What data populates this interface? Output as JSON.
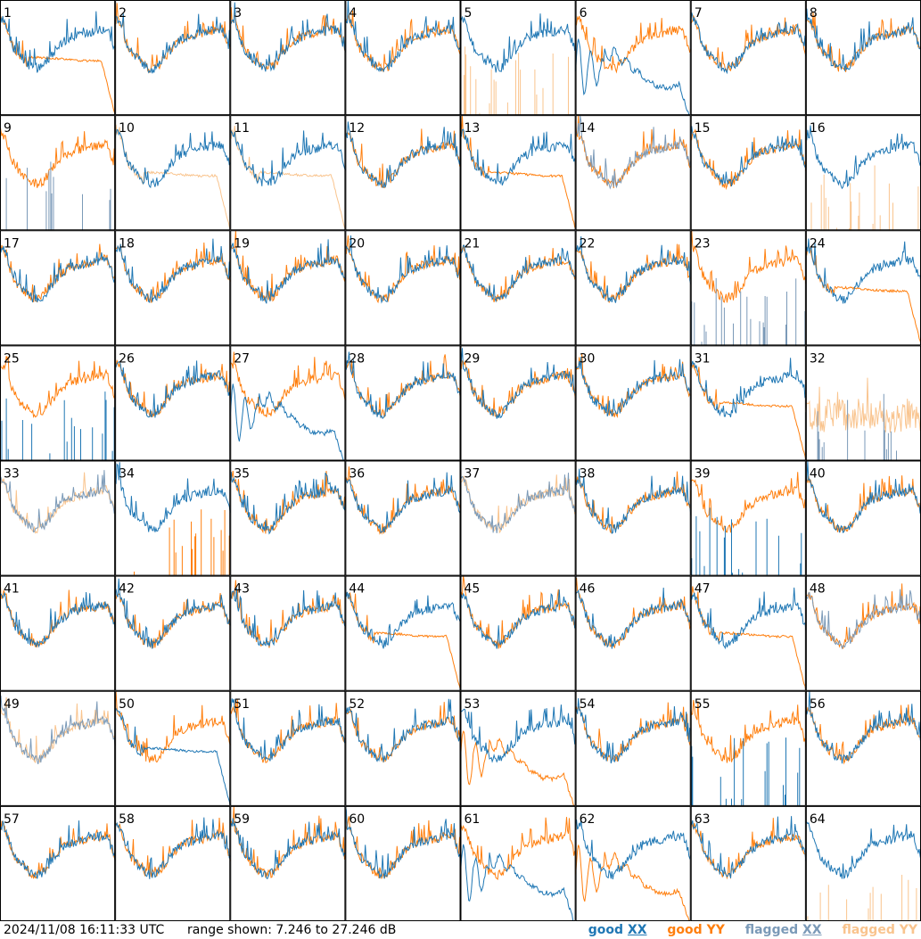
{
  "chart_data": {
    "type": "line",
    "panel_count": 64,
    "grid": {
      "rows": 8,
      "cols": 8
    },
    "panel_labels": [
      "1",
      "2",
      "3",
      "4",
      "5",
      "6",
      "7",
      "8",
      "9",
      "10",
      "11",
      "12",
      "13",
      "14",
      "15",
      "16",
      "17",
      "18",
      "19",
      "20",
      "21",
      "22",
      "23",
      "24",
      "25",
      "26",
      "27",
      "28",
      "29",
      "30",
      "31",
      "32",
      "33",
      "34",
      "35",
      "36",
      "37",
      "38",
      "39",
      "40",
      "41",
      "42",
      "43",
      "44",
      "45",
      "46",
      "47",
      "48",
      "49",
      "50",
      "51",
      "52",
      "53",
      "54",
      "55",
      "56",
      "57",
      "58",
      "59",
      "60",
      "61",
      "62",
      "63",
      "64"
    ],
    "ylim": [
      7.246,
      27.246
    ],
    "yunit": "dB",
    "series": [
      {
        "key": "good_xx",
        "name": "good",
        "pol": "XX",
        "color": "#1f77b4"
      },
      {
        "key": "good_yy",
        "name": "good",
        "pol": "YY",
        "color": "#ff7f0e"
      },
      {
        "key": "flagged_xx",
        "name": "flagged",
        "pol": "XX",
        "color": "#7b9ab8"
      },
      {
        "key": "flagged_yy",
        "name": "flagged",
        "pol": "YY",
        "color": "#f9c48e"
      }
    ],
    "panels": {
      "1": {
        "xx": "good",
        "yy": "droop"
      },
      "5": {
        "xx": "good",
        "yy": "spiky_flagged"
      },
      "6": {
        "xx": "oscill",
        "yy": "good"
      },
      "9": {
        "xx": "spiky_flagged",
        "yy": "good"
      },
      "10": {
        "xx": "good",
        "yy": "droop_flagged"
      },
      "11": {
        "xx": "good",
        "yy": "droop_flagged"
      },
      "13": {
        "xx": "good",
        "yy": "droop"
      },
      "14": {
        "xx": "good_flagged",
        "yy": "good"
      },
      "16": {
        "xx": "good",
        "yy": "spiky_flagged"
      },
      "23": {
        "xx": "spiky_flagged",
        "yy": "good"
      },
      "24": {
        "xx": "good",
        "yy": "droop"
      },
      "25": {
        "xx": "spiky",
        "yy": "good"
      },
      "27": {
        "xx": "oscill",
        "yy": "good"
      },
      "31": {
        "xx": "good",
        "yy": "droop"
      },
      "32": {
        "xx": "spiky_flagged",
        "yy": "noisy_flagged"
      },
      "33": {
        "xx": "good_flagged",
        "yy": "good_flagged"
      },
      "34": {
        "xx": "good",
        "yy": "spiky"
      },
      "37": {
        "xx": "good_flagged",
        "yy": "good_flagged"
      },
      "39": {
        "xx": "spiky",
        "yy": "good"
      },
      "44": {
        "xx": "good",
        "yy": "droop"
      },
      "47": {
        "xx": "good",
        "yy": "droop"
      },
      "48": {
        "xx": "good_flagged",
        "yy": "good"
      },
      "49": {
        "xx": "good_flagged",
        "yy": "good_flagged"
      },
      "50": {
        "xx": "droop",
        "yy": "good"
      },
      "53": {
        "xx": "good",
        "yy": "oscill"
      },
      "55": {
        "xx": "spiky",
        "yy": "good"
      },
      "61": {
        "xx": "oscill",
        "yy": "good"
      },
      "62": {
        "xx": "good",
        "yy": "oscill"
      },
      "64": {
        "xx": "good",
        "yy": "spiky_flagged"
      }
    }
  },
  "footer": {
    "timestamp": "2024/11/08 16:11:33 UTC",
    "range": "range shown: 7.246 to 27.246 dB",
    "legend": {
      "good_xx": {
        "word": "good",
        "pol": "XX",
        "color": "#1f77b4"
      },
      "good_yy": {
        "word": "good",
        "pol": "YY",
        "color": "#ff7f0e"
      },
      "flagged_xx": {
        "word": "flagged",
        "pol": "XX",
        "color": "#7b9ab8"
      },
      "flagged_yy": {
        "word": "flagged",
        "pol": "YY",
        "color": "#f9c48e"
      }
    }
  }
}
